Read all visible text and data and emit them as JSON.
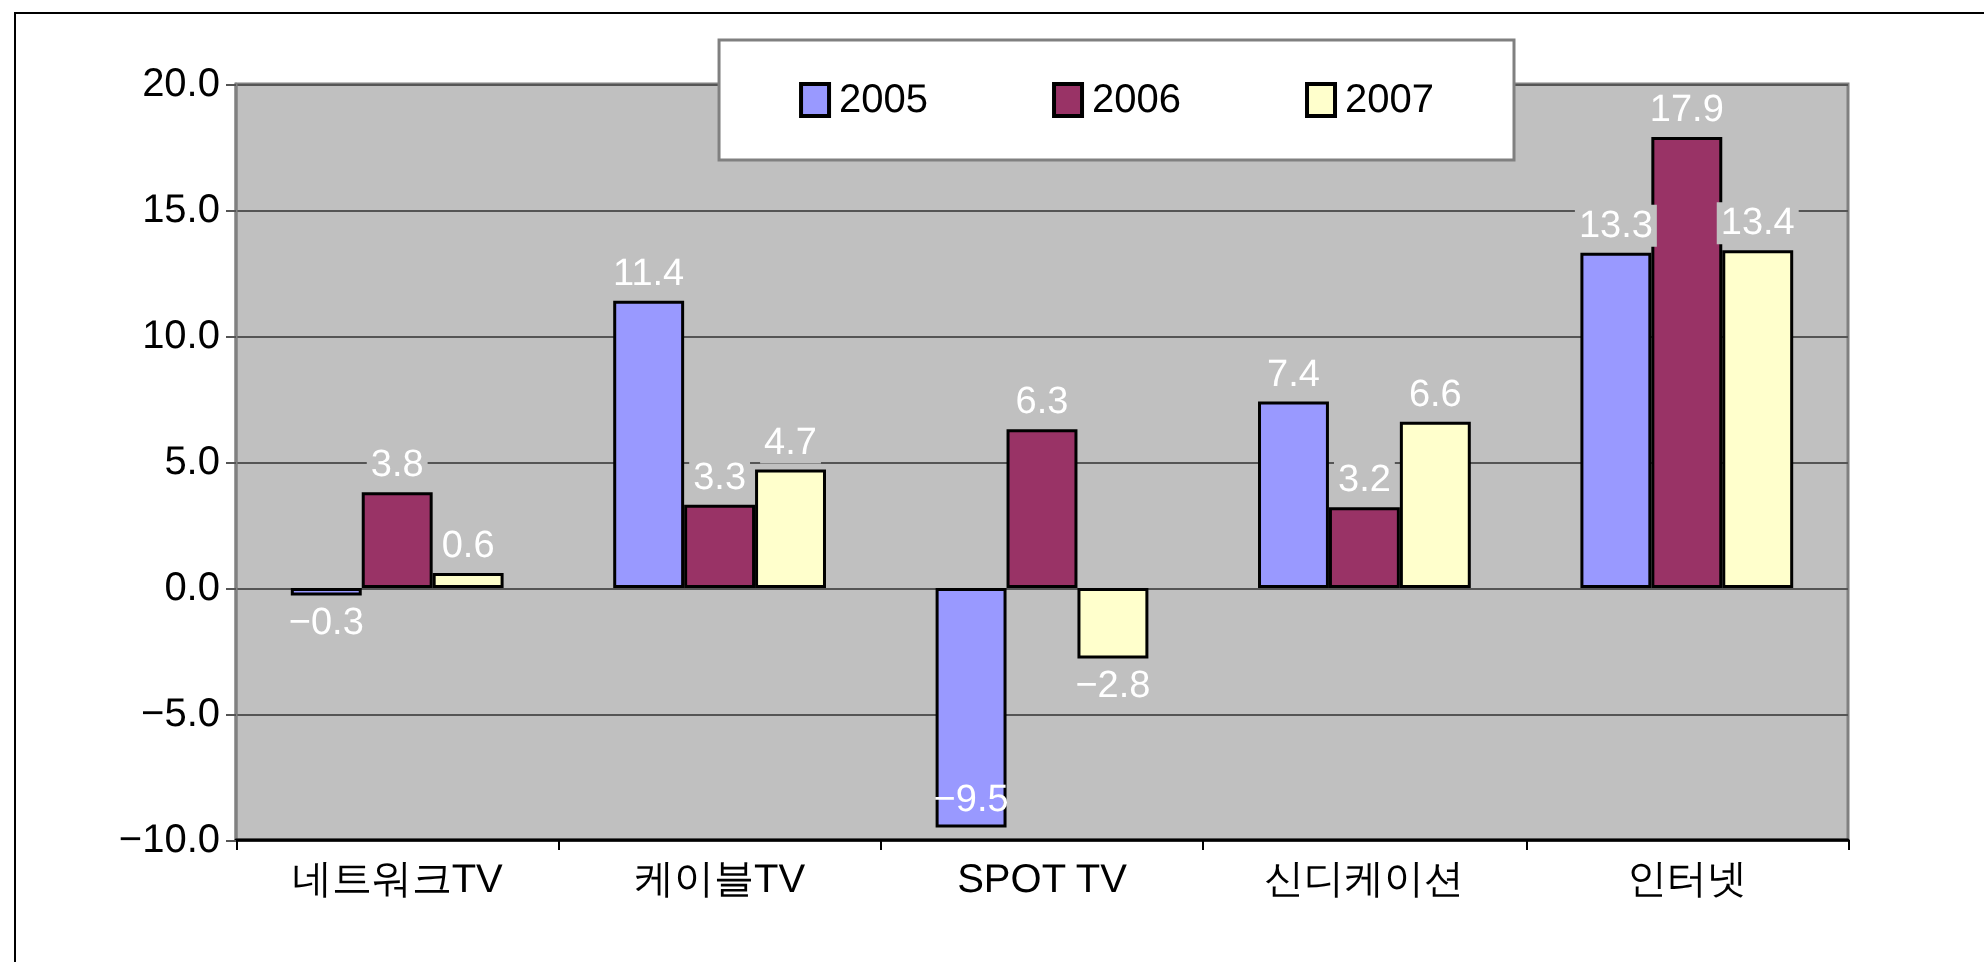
{
  "chart_data": {
    "type": "bar",
    "categories": [
      "네트워크TV",
      "케이블TV",
      "SPOT TV",
      "신디케이션",
      "인터넷"
    ],
    "series": [
      {
        "name": "2005",
        "color": "#9999ff",
        "values": [
          -0.3,
          11.4,
          -9.5,
          7.4,
          13.3
        ],
        "value_labels": [
          "−0.3",
          "11.4",
          "−9.5",
          "7.4",
          "13.3"
        ]
      },
      {
        "name": "2006",
        "color": "#993366",
        "values": [
          3.8,
          3.3,
          6.3,
          3.2,
          17.9
        ],
        "value_labels": [
          "3.8",
          "3.3",
          "6.3",
          "3.2",
          "17.9"
        ]
      },
      {
        "name": "2007",
        "color": "#ffffcc",
        "values": [
          0.6,
          4.7,
          -2.8,
          6.6,
          13.4
        ],
        "value_labels": [
          "0.6",
          "4.7",
          "−2.8",
          "6.6",
          "13.4"
        ]
      }
    ],
    "ylim": [
      -10,
      20
    ],
    "yticks": [
      {
        "value": -10,
        "label": "−10.0"
      },
      {
        "value": -5,
        "label": "−5.0"
      },
      {
        "value": 0,
        "label": "0.0"
      },
      {
        "value": 5,
        "label": "5.0"
      },
      {
        "value": 10,
        "label": "10.0"
      },
      {
        "value": 15,
        "label": "15.0"
      },
      {
        "value": 20,
        "label": "20.0"
      }
    ],
    "grid": "y",
    "legend": "top right"
  }
}
